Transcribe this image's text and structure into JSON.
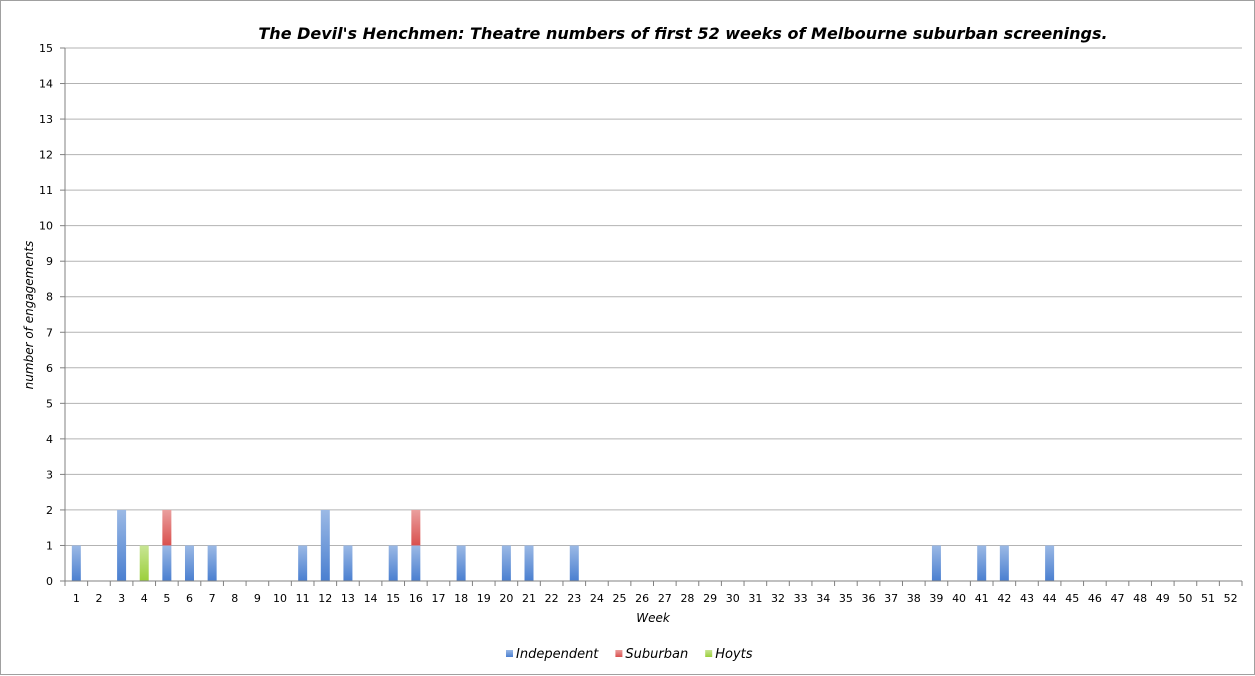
{
  "chart_data": {
    "type": "bar",
    "stacked": true,
    "title": "The Devil's Henchmen: Theatre numbers of first 52 weeks of Melbourne suburban screenings.",
    "xlabel": "Week",
    "ylabel": "number of engagements",
    "ylim": [
      0,
      15
    ],
    "yticks": [
      0,
      1,
      2,
      3,
      4,
      5,
      6,
      7,
      8,
      9,
      10,
      11,
      12,
      13,
      14,
      15
    ],
    "grid": true,
    "legend_position": "bottom",
    "categories": [
      "1",
      "2",
      "3",
      "4",
      "5",
      "6",
      "7",
      "8",
      "9",
      "10",
      "11",
      "12",
      "13",
      "14",
      "15",
      "16",
      "17",
      "18",
      "19",
      "20",
      "21",
      "22",
      "23",
      "24",
      "25",
      "26",
      "27",
      "28",
      "29",
      "30",
      "31",
      "32",
      "33",
      "34",
      "35",
      "36",
      "37",
      "38",
      "39",
      "40",
      "41",
      "42",
      "43",
      "44",
      "45",
      "46",
      "47",
      "48",
      "49",
      "50",
      "51",
      "52"
    ],
    "series": [
      {
        "name": "Independent",
        "color": "#4a7fd0",
        "values": [
          1,
          0,
          2,
          0,
          1,
          1,
          1,
          0,
          0,
          0,
          1,
          2,
          1,
          0,
          1,
          1,
          0,
          1,
          0,
          1,
          1,
          0,
          1,
          0,
          0,
          0,
          0,
          0,
          0,
          0,
          0,
          0,
          0,
          0,
          0,
          0,
          0,
          0,
          1,
          0,
          1,
          1,
          0,
          1,
          0,
          0,
          0,
          0,
          0,
          0,
          0,
          0
        ]
      },
      {
        "name": "Suburban",
        "color": "#d9504e",
        "values": [
          0,
          0,
          0,
          0,
          1,
          0,
          0,
          0,
          0,
          0,
          0,
          0,
          0,
          0,
          0,
          1,
          0,
          0,
          0,
          0,
          0,
          0,
          0,
          0,
          0,
          0,
          0,
          0,
          0,
          0,
          0,
          0,
          0,
          0,
          0,
          0,
          0,
          0,
          0,
          0,
          0,
          0,
          0,
          0,
          0,
          0,
          0,
          0,
          0,
          0,
          0,
          0
        ]
      },
      {
        "name": "Hoyts",
        "color": "#9bcf3c",
        "values": [
          0,
          0,
          0,
          1,
          0,
          0,
          0,
          0,
          0,
          0,
          0,
          0,
          0,
          0,
          0,
          0,
          0,
          0,
          0,
          0,
          0,
          0,
          0,
          0,
          0,
          0,
          0,
          0,
          0,
          0,
          0,
          0,
          0,
          0,
          0,
          0,
          0,
          0,
          0,
          0,
          0,
          0,
          0,
          0,
          0,
          0,
          0,
          0,
          0,
          0,
          0,
          0
        ]
      }
    ]
  }
}
